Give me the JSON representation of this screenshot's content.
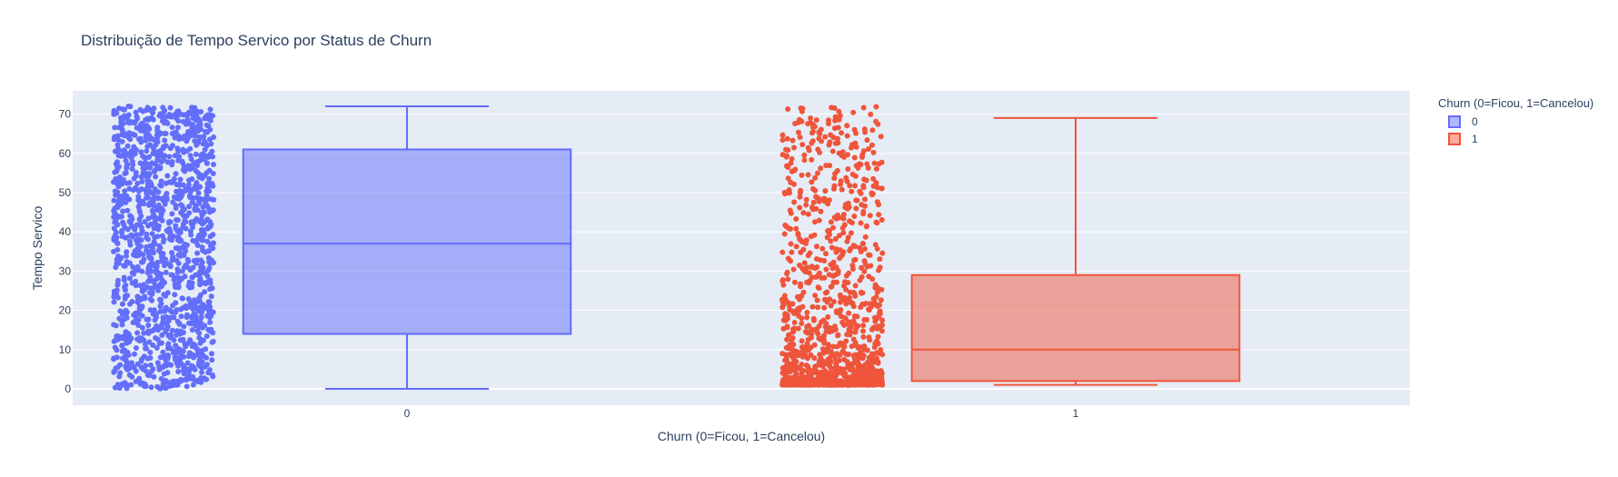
{
  "chart_data": {
    "type": "box",
    "title": "Distribuição de Tempo Servico por Status de Churn",
    "xlabel": "Churn (0=Ficou, 1=Cancelou)",
    "ylabel": "Tempo Servico",
    "categories": [
      "0",
      "1"
    ],
    "yticks": [
      0,
      10,
      20,
      30,
      40,
      50,
      60,
      70
    ],
    "ylim": [
      -4,
      76
    ],
    "grid": true,
    "points_shown": "all (jittered, left of each box)",
    "legend": {
      "title": "Churn (0=Ficou, 1=Cancelou)",
      "placement": "top-right outside plot"
    },
    "series": [
      {
        "name": "0",
        "color": "#636efa",
        "fill": "rgba(99,110,250,0.5)",
        "min": 0,
        "q1": 14,
        "median": 37,
        "q3": 61,
        "max": 72
      },
      {
        "name": "1",
        "color": "#ef553b",
        "fill": "rgba(239,85,59,0.5)",
        "min": 1,
        "q1": 2,
        "median": 10,
        "q3": 29,
        "max": 69,
        "outlier_range": [
          70,
          72
        ]
      }
    ]
  }
}
